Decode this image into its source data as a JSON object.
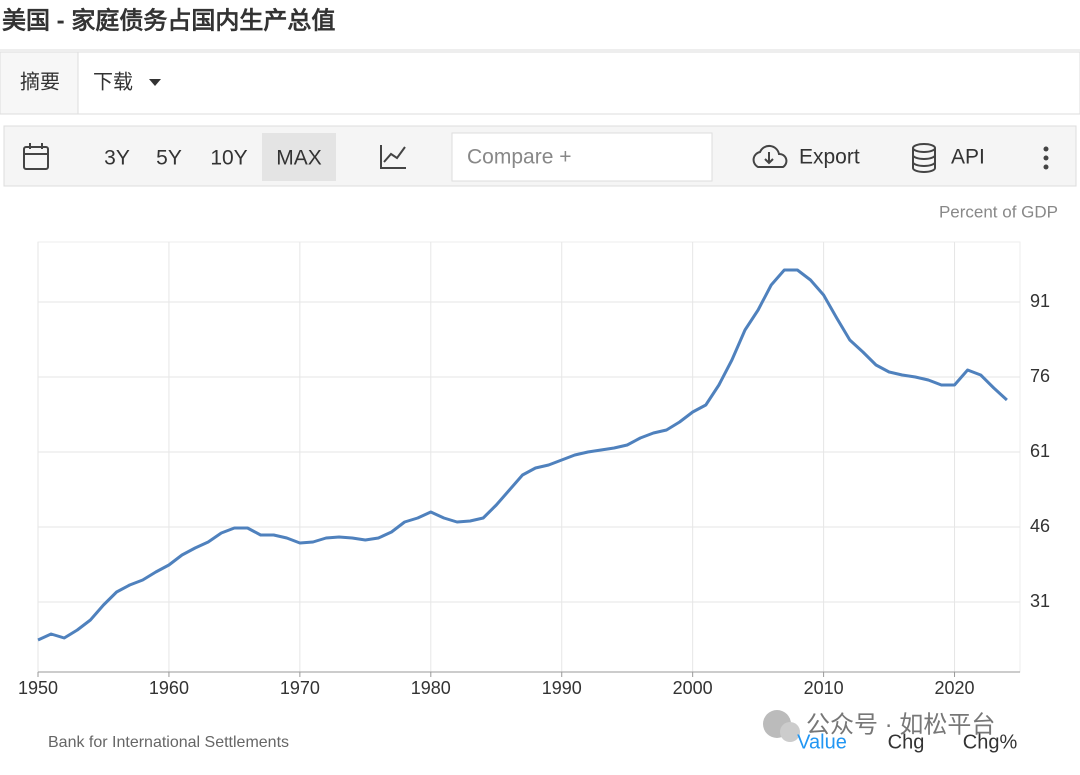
{
  "header": {
    "title": "美国 - 家庭债务占国内生产总值"
  },
  "tabs": [
    "摘要",
    "下载"
  ],
  "toolbar": {
    "ranges": [
      "3Y",
      "5Y",
      "10Y",
      "MAX"
    ],
    "selected_range_index": 3,
    "compare_placeholder": "Compare +",
    "export": "Export",
    "api": "API"
  },
  "chart_data": {
    "type": "line",
    "y_axis_label": "Percent of GDP",
    "source": "Bank for International Settlements",
    "color": "#4f81bd",
    "x": [
      1950,
      1951,
      1952,
      1953,
      1954,
      1955,
      1956,
      1957,
      1958,
      1959,
      1960,
      1961,
      1962,
      1963,
      1964,
      1965,
      1966,
      1967,
      1968,
      1969,
      1970,
      1971,
      1972,
      1973,
      1974,
      1975,
      1976,
      1977,
      1978,
      1979,
      1980,
      1981,
      1982,
      1983,
      1984,
      1985,
      1986,
      1987,
      1988,
      1989,
      1990,
      1991,
      1992,
      1993,
      1994,
      1995,
      1996,
      1997,
      1998,
      1999,
      2000,
      2001,
      2002,
      2003,
      2004,
      2005,
      2006,
      2007,
      2008,
      2009,
      2010,
      2011,
      2012,
      2013,
      2014,
      2015,
      2016,
      2017,
      2018,
      2019,
      2020,
      2021,
      2022,
      2023,
      2024
    ],
    "values": [
      23.4,
      24.6,
      23.8,
      25.4,
      27.4,
      30.4,
      33,
      34.4,
      35.4,
      37,
      38.4,
      40.4,
      41.8,
      43,
      44.8,
      45.8,
      45.8,
      44.4,
      44.4,
      43.8,
      42.8,
      43,
      43.8,
      44,
      43.8,
      43.4,
      43.8,
      45,
      47,
      47.8,
      49,
      47.8,
      47,
      47.2,
      47.8,
      50.4,
      53.4,
      56.4,
      57.8,
      58.4,
      59.4,
      60.4,
      61,
      61.4,
      61.8,
      62.4,
      63.8,
      64.8,
      65.4,
      67,
      69,
      70.4,
      74.4,
      79.4,
      85.4,
      89.4,
      94.4,
      97.4,
      97.4,
      95.4,
      92.4,
      87.8,
      83.4,
      81,
      78.4,
      77,
      76.4,
      76,
      75.4,
      74.4,
      74.4,
      77.4,
      76.4,
      73.8,
      71.4
    ],
    "xlim": [
      1950,
      2025
    ],
    "ylim": [
      17,
      103
    ],
    "xticks": [
      1950,
      1960,
      1970,
      1980,
      1990,
      2000,
      2010,
      2020
    ],
    "yticks": [
      31,
      46,
      61,
      76,
      91
    ],
    "grid": true
  },
  "footer": {
    "tabs": [
      "Value",
      "Chg",
      "Chg%"
    ],
    "active_index": 0
  },
  "watermark": "公众号 · 如松平台"
}
